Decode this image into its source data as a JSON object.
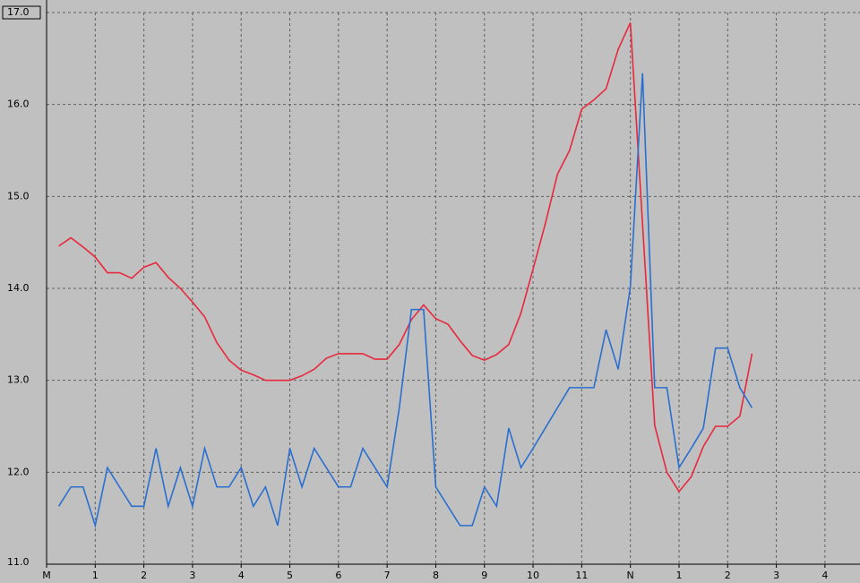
{
  "chart_data": {
    "type": "line",
    "x": [
      0.25,
      0.5,
      0.75,
      1,
      1.25,
      1.5,
      1.75,
      2,
      2.25,
      2.5,
      2.75,
      3,
      3.25,
      3.5,
      3.75,
      4,
      4.25,
      4.5,
      4.75,
      5,
      5.25,
      5.5,
      5.75,
      6,
      6.25,
      6.5,
      6.75,
      7,
      7.25,
      7.5,
      7.75,
      8,
      8.25,
      8.5,
      8.75,
      9,
      9.25,
      9.5,
      9.75,
      10,
      10.25,
      10.5,
      10.75,
      11,
      11.25,
      11.5,
      11.75,
      12,
      12.25,
      12.5,
      12.75,
      13,
      13.25,
      13.5,
      13.75,
      14,
      14.25,
      14.5
    ],
    "series": [
      {
        "color": "#e8283c",
        "values": [
          14.46,
          14.55,
          14.45,
          14.34,
          14.17,
          14.17,
          14.11,
          14.23,
          14.28,
          14.12,
          14.0,
          13.85,
          13.69,
          13.41,
          13.22,
          13.11,
          13.06,
          13.0,
          13.0,
          13.0,
          13.05,
          13.12,
          13.24,
          13.29,
          13.29,
          13.29,
          13.23,
          13.23,
          13.39,
          13.66,
          13.82,
          13.67,
          13.61,
          13.43,
          13.27,
          13.22,
          13.28,
          13.39,
          13.73,
          14.21,
          14.7,
          15.24,
          15.5,
          15.95,
          16.05,
          16.17,
          16.6,
          16.89,
          14.7,
          12.51,
          12.0,
          11.79,
          11.95,
          12.28,
          12.5,
          12.5,
          12.61,
          13.29
        ]
      },
      {
        "color": "#2a6fd0",
        "values": [
          11.63,
          11.84,
          11.84,
          11.42,
          12.05,
          11.84,
          11.63,
          11.63,
          12.26,
          11.63,
          12.05,
          11.63,
          12.26,
          11.84,
          11.84,
          12.05,
          11.63,
          11.84,
          11.42,
          12.26,
          11.84,
          12.26,
          12.05,
          11.84,
          11.84,
          12.26,
          12.05,
          11.84,
          12.7,
          13.77,
          13.77,
          11.84,
          11.63,
          11.42,
          11.42,
          11.84,
          11.63,
          12.48,
          12.05,
          12.26,
          12.48,
          12.7,
          12.92,
          12.92,
          12.92,
          13.55,
          13.12,
          14.02,
          16.34,
          12.92,
          12.92,
          12.05,
          12.26,
          12.48,
          13.35,
          13.35,
          12.92,
          12.7
        ]
      }
    ],
    "xlim": [
      0,
      16.72
    ],
    "xticks": [
      {
        "value": 0,
        "label": "M"
      },
      1,
      2,
      3,
      4,
      5,
      6,
      7,
      8,
      9,
      10,
      11,
      {
        "value": 12,
        "label": "N"
      },
      {
        "value": 13,
        "label": "1"
      },
      {
        "value": 14,
        "label": "2"
      },
      {
        "value": 15,
        "label": "3"
      },
      {
        "value": 16,
        "label": "4"
      }
    ],
    "ylim": [
      11,
      17
    ],
    "yticks": [
      {
        "value": 11,
        "label": "11.0"
      },
      {
        "value": 12,
        "label": "12.0"
      },
      {
        "value": 13,
        "label": "13.0"
      },
      {
        "value": 14,
        "label": "14.0"
      },
      {
        "value": 15,
        "label": "15.0"
      },
      {
        "value": 16,
        "label": "16.0"
      },
      {
        "value": 17,
        "label": "17.0"
      }
    ],
    "grid": true
  }
}
